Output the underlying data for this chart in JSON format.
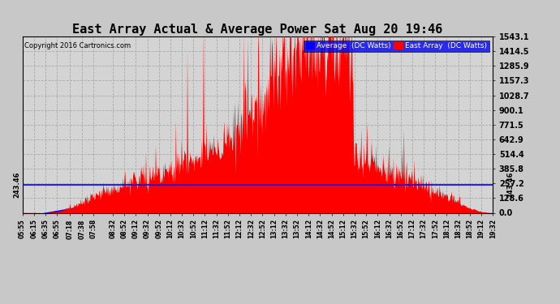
{
  "title": "East Array Actual & Average Power Sat Aug 20 19:46",
  "copyright": "Copyright 2016 Cartronics.com",
  "legend_labels": [
    "Average  (DC Watts)",
    "East Array  (DC Watts)"
  ],
  "legend_bg_color": "blue",
  "y_ticks": [
    0.0,
    128.6,
    257.2,
    385.8,
    514.4,
    642.9,
    771.5,
    900.1,
    1028.7,
    1157.3,
    1285.9,
    1414.5,
    1543.1
  ],
  "hline_y": 243.46,
  "hline_label": "243.46",
  "hline_color": "blue",
  "ylim": [
    0,
    1543.1
  ],
  "bg_color": "#c8c8c8",
  "plot_bg_color": "#d0d0d0",
  "grid_color": "#aaaaaa",
  "title_fontsize": 11,
  "x_labels": [
    "05:55",
    "06:15",
    "06:35",
    "06:55",
    "07:18",
    "07:38",
    "07:58",
    "08:32",
    "08:52",
    "09:12",
    "09:32",
    "09:52",
    "10:12",
    "10:32",
    "10:52",
    "11:12",
    "11:32",
    "11:52",
    "12:12",
    "12:32",
    "12:52",
    "13:12",
    "13:32",
    "13:52",
    "14:12",
    "14:32",
    "14:52",
    "15:12",
    "15:32",
    "15:52",
    "16:12",
    "16:32",
    "16:52",
    "17:12",
    "17:32",
    "17:52",
    "18:12",
    "18:32",
    "18:52",
    "19:12",
    "19:32"
  ]
}
